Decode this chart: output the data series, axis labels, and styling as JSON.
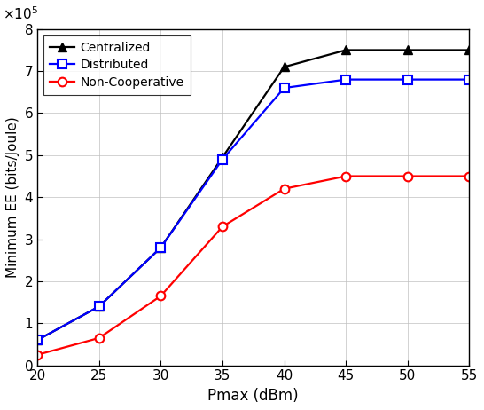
{
  "x": [
    20,
    25,
    30,
    35,
    40,
    45,
    50,
    55
  ],
  "centralized": [
    60000,
    140000,
    280000,
    495000,
    710000,
    750000,
    750000,
    750000
  ],
  "distributed": [
    60000,
    140000,
    280000,
    490000,
    660000,
    680000,
    680000,
    680000
  ],
  "non_cooperative": [
    25000,
    65000,
    165000,
    330000,
    420000,
    450000,
    450000,
    450000
  ],
  "centralized_color": "#000000",
  "distributed_color": "#0000FF",
  "non_cooperative_color": "#FF0000",
  "xlabel": "Pmax (dBm)",
  "ylabel": "Minimum EE (bits/Joule)",
  "xlim": [
    20,
    55
  ],
  "ylim": [
    0,
    800000
  ],
  "yticks": [
    0,
    100000,
    200000,
    300000,
    400000,
    500000,
    600000,
    700000,
    800000
  ],
  "xticks": [
    20,
    25,
    30,
    35,
    40,
    45,
    50,
    55
  ],
  "legend_labels": [
    "Centralized",
    "Distributed",
    "Non-Cooperative"
  ],
  "linewidth": 1.6,
  "markersize": 7
}
